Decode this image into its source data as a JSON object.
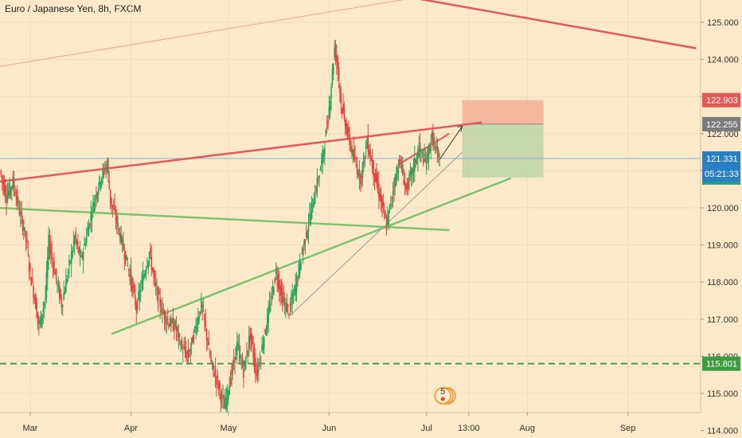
{
  "chart_data": {
    "type": "candlestick",
    "title": "Euro / Japanese Yen, 8h, FXCM",
    "y_axis": {
      "min": 113.5,
      "max": 125.5,
      "ticks": [
        "125.000",
        "124.000",
        "123.000",
        "122.000",
        "121.000",
        "120.000",
        "119.000",
        "118.000",
        "117.000",
        "116.000",
        "115.000",
        "114.000"
      ]
    },
    "x_axis": {
      "ticks": [
        {
          "label": "Mar",
          "day": 0
        },
        {
          "label": "Apr",
          "day": 31
        },
        {
          "label": "May",
          "day": 61
        },
        {
          "label": "Jun",
          "day": 92
        },
        {
          "label": "Jul",
          "day": 122
        },
        {
          "label": "13:00",
          "day": 135
        },
        {
          "label": "Aug",
          "day": 153
        },
        {
          "label": "Sep",
          "day": 184
        }
      ]
    },
    "price_path": [
      [
        -9,
        121.0
      ],
      [
        -7,
        120.3
      ],
      [
        -5,
        120.7
      ],
      [
        -3,
        119.9
      ],
      [
        -1,
        119.2
      ],
      [
        0,
        118.4
      ],
      [
        2,
        117.4
      ],
      [
        3,
        116.8
      ],
      [
        5,
        117.6
      ],
      [
        6,
        119.1
      ],
      [
        8,
        118.2
      ],
      [
        10,
        117.4
      ],
      [
        12,
        118.3
      ],
      [
        14,
        119.2
      ],
      [
        16,
        118.6
      ],
      [
        18,
        119.4
      ],
      [
        20,
        120.2
      ],
      [
        22,
        120.8
      ],
      [
        24,
        121.2
      ],
      [
        25,
        120.2
      ],
      [
        27,
        119.6
      ],
      [
        29,
        118.9
      ],
      [
        31,
        118.2
      ],
      [
        33,
        117.3
      ],
      [
        35,
        118.1
      ],
      [
        37,
        118.8
      ],
      [
        39,
        117.8
      ],
      [
        41,
        117.2
      ],
      [
        43,
        116.9
      ],
      [
        45,
        116.8
      ],
      [
        47,
        116.2
      ],
      [
        49,
        116.0
      ],
      [
        51,
        116.7
      ],
      [
        53,
        117.4
      ],
      [
        54,
        116.9
      ],
      [
        56,
        115.8
      ],
      [
        58,
        115.3
      ],
      [
        60,
        114.6
      ],
      [
        62,
        115.4
      ],
      [
        64,
        116.3
      ],
      [
        66,
        115.6
      ],
      [
        68,
        116.6
      ],
      [
        70,
        115.5
      ],
      [
        72,
        116.4
      ],
      [
        74,
        117.3
      ],
      [
        76,
        118.3
      ],
      [
        78,
        117.5
      ],
      [
        80,
        117.2
      ],
      [
        82,
        117.9
      ],
      [
        84,
        118.8
      ],
      [
        86,
        119.6
      ],
      [
        88,
        120.4
      ],
      [
        90,
        121.2
      ],
      [
        92,
        122.4
      ],
      [
        94,
        124.3
      ],
      [
        95,
        123.8
      ],
      [
        96,
        122.8
      ],
      [
        98,
        122.0
      ],
      [
        100,
        121.3
      ],
      [
        102,
        120.8
      ],
      [
        104,
        121.8
      ],
      [
        106,
        121.0
      ],
      [
        108,
        120.3
      ],
      [
        110,
        119.5
      ],
      [
        112,
        120.5
      ],
      [
        114,
        121.3
      ],
      [
        116,
        120.5
      ],
      [
        118,
        121.0
      ],
      [
        120,
        121.6
      ],
      [
        122,
        121.2
      ],
      [
        124,
        121.9
      ],
      [
        126,
        121.3
      ]
    ],
    "levels": {
      "take_profit": 122.903,
      "entry": 122.255,
      "stop": 120.817,
      "current": 121.331,
      "support": 115.801
    },
    "countdown": "05:21:33",
    "event_marker": "5"
  }
}
